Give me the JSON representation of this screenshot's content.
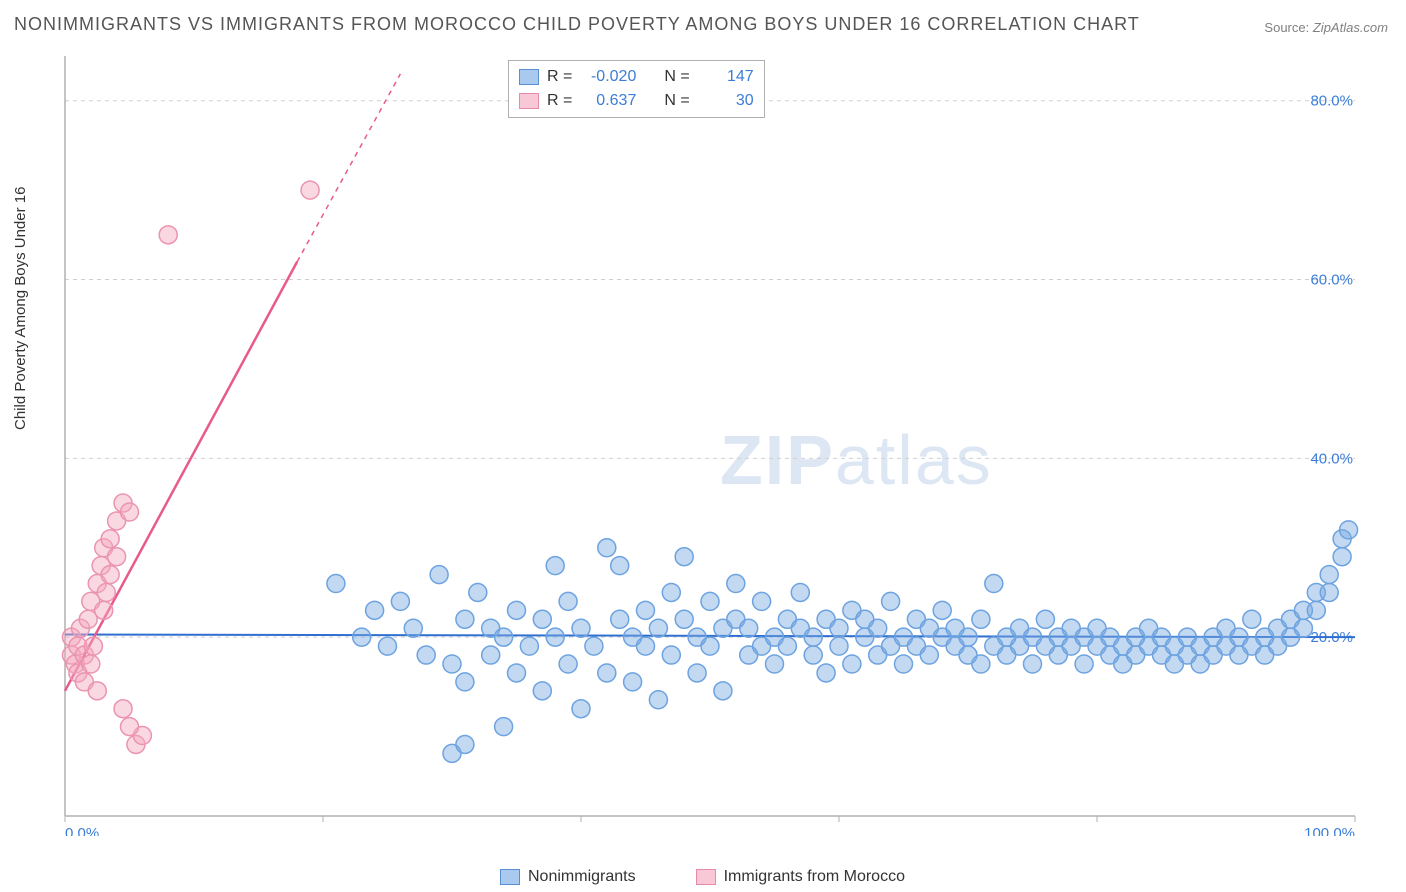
{
  "title": "NONIMMIGRANTS VS IMMIGRANTS FROM MOROCCO CHILD POVERTY AMONG BOYS UNDER 16 CORRELATION CHART",
  "source_label": "Source:",
  "source_value": "ZipAtlas.com",
  "ylabel": "Child Poverty Among Boys Under 16",
  "watermark_zip": "ZIP",
  "watermark_atlas": "atlas",
  "chart": {
    "type": "scatter",
    "xlim": [
      0,
      100
    ],
    "ylim": [
      0,
      85
    ],
    "x_ticks": [
      0,
      20,
      40,
      60,
      80,
      100
    ],
    "x_tick_labels": [
      "0.0%",
      "",
      "",
      "",
      "",
      "100.0%"
    ],
    "y_ticks": [
      20,
      40,
      60,
      80
    ],
    "y_tick_labels": [
      "20.0%",
      "40.0%",
      "60.0%",
      "80.0%"
    ],
    "grid_color": "#d0d0d0",
    "axis_color": "#b0b0b0",
    "background_color": "#ffffff",
    "tick_label_color": "#3b7dd8",
    "marker_radius": 9,
    "marker_stroke_width": 1.5,
    "series": [
      {
        "name": "Nonimmigrants",
        "color_fill": "rgba(123,171,227,0.45)",
        "color_stroke": "#6da3e0",
        "swatch_fill": "#a9c9ef",
        "swatch_stroke": "#5a8fd6",
        "R": "-0.020",
        "N": "147",
        "trend": {
          "x1": 0,
          "y1": 20.3,
          "x2": 100,
          "y2": 20.0,
          "color": "#2f6fd0",
          "width": 2
        },
        "points": [
          [
            21,
            26
          ],
          [
            23,
            20
          ],
          [
            24,
            23
          ],
          [
            25,
            19
          ],
          [
            26,
            24
          ],
          [
            27,
            21
          ],
          [
            28,
            18
          ],
          [
            29,
            27
          ],
          [
            30,
            17
          ],
          [
            30,
            7
          ],
          [
            31,
            22
          ],
          [
            31,
            15
          ],
          [
            32,
            25
          ],
          [
            33,
            18
          ],
          [
            33,
            21
          ],
          [
            34,
            20
          ],
          [
            34,
            10
          ],
          [
            35,
            16
          ],
          [
            35,
            23
          ],
          [
            36,
            19
          ],
          [
            37,
            22
          ],
          [
            37,
            14
          ],
          [
            38,
            20
          ],
          [
            38,
            28
          ],
          [
            39,
            17
          ],
          [
            39,
            24
          ],
          [
            40,
            21
          ],
          [
            40,
            12
          ],
          [
            41,
            19
          ],
          [
            42,
            30
          ],
          [
            42,
            16
          ],
          [
            43,
            22
          ],
          [
            43,
            28
          ],
          [
            44,
            20
          ],
          [
            44,
            15
          ],
          [
            45,
            23
          ],
          [
            45,
            19
          ],
          [
            46,
            21
          ],
          [
            46,
            13
          ],
          [
            47,
            25
          ],
          [
            47,
            18
          ],
          [
            48,
            22
          ],
          [
            48,
            29
          ],
          [
            49,
            20
          ],
          [
            49,
            16
          ],
          [
            50,
            24
          ],
          [
            50,
            19
          ],
          [
            51,
            21
          ],
          [
            51,
            14
          ],
          [
            52,
            22
          ],
          [
            52,
            26
          ],
          [
            53,
            18
          ],
          [
            53,
            21
          ],
          [
            54,
            19
          ],
          [
            54,
            24
          ],
          [
            55,
            20
          ],
          [
            55,
            17
          ],
          [
            56,
            22
          ],
          [
            56,
            19
          ],
          [
            57,
            21
          ],
          [
            57,
            25
          ],
          [
            58,
            18
          ],
          [
            58,
            20
          ],
          [
            59,
            22
          ],
          [
            59,
            16
          ],
          [
            60,
            21
          ],
          [
            60,
            19
          ],
          [
            61,
            23
          ],
          [
            61,
            17
          ],
          [
            62,
            20
          ],
          [
            62,
            22
          ],
          [
            63,
            18
          ],
          [
            63,
            21
          ],
          [
            64,
            19
          ],
          [
            64,
            24
          ],
          [
            65,
            20
          ],
          [
            65,
            17
          ],
          [
            66,
            22
          ],
          [
            66,
            19
          ],
          [
            67,
            21
          ],
          [
            67,
            18
          ],
          [
            68,
            20
          ],
          [
            68,
            23
          ],
          [
            69,
            19
          ],
          [
            69,
            21
          ],
          [
            70,
            18
          ],
          [
            70,
            20
          ],
          [
            71,
            22
          ],
          [
            71,
            17
          ],
          [
            72,
            26
          ],
          [
            72,
            19
          ],
          [
            73,
            20
          ],
          [
            73,
            18
          ],
          [
            74,
            21
          ],
          [
            74,
            19
          ],
          [
            75,
            20
          ],
          [
            75,
            17
          ],
          [
            76,
            22
          ],
          [
            76,
            19
          ],
          [
            77,
            20
          ],
          [
            77,
            18
          ],
          [
            78,
            21
          ],
          [
            78,
            19
          ],
          [
            79,
            20
          ],
          [
            79,
            17
          ],
          [
            80,
            19
          ],
          [
            80,
            21
          ],
          [
            81,
            18
          ],
          [
            81,
            20
          ],
          [
            82,
            19
          ],
          [
            82,
            17
          ],
          [
            83,
            20
          ],
          [
            83,
            18
          ],
          [
            84,
            19
          ],
          [
            84,
            21
          ],
          [
            85,
            18
          ],
          [
            85,
            20
          ],
          [
            86,
            17
          ],
          [
            86,
            19
          ],
          [
            87,
            18
          ],
          [
            87,
            20
          ],
          [
            88,
            19
          ],
          [
            88,
            17
          ],
          [
            89,
            18
          ],
          [
            89,
            20
          ],
          [
            90,
            19
          ],
          [
            90,
            21
          ],
          [
            91,
            18
          ],
          [
            91,
            20
          ],
          [
            92,
            19
          ],
          [
            92,
            22
          ],
          [
            93,
            20
          ],
          [
            93,
            18
          ],
          [
            94,
            21
          ],
          [
            94,
            19
          ],
          [
            95,
            22
          ],
          [
            95,
            20
          ],
          [
            96,
            23
          ],
          [
            96,
            21
          ],
          [
            97,
            25
          ],
          [
            97,
            23
          ],
          [
            98,
            27
          ],
          [
            98,
            25
          ],
          [
            99,
            29
          ],
          [
            99,
            31
          ],
          [
            99.5,
            32
          ],
          [
            31,
            8
          ]
        ]
      },
      {
        "name": "Immigrants from Morocco",
        "color_fill": "rgba(243,169,191,0.45)",
        "color_stroke": "#eb94b1",
        "swatch_fill": "#f8c8d7",
        "swatch_stroke": "#e88ba9",
        "R": "0.637",
        "N": "30",
        "trend": {
          "x1": 0,
          "y1": 14,
          "x2": 18,
          "y2": 62,
          "color": "#e85a8a",
          "width": 2.5,
          "dash_extend": {
            "x1": 18,
            "y1": 62,
            "x2": 26,
            "y2": 83
          }
        },
        "points": [
          [
            0.5,
            18
          ],
          [
            0.5,
            20
          ],
          [
            0.8,
            17
          ],
          [
            1,
            19
          ],
          [
            1,
            16
          ],
          [
            1.2,
            21
          ],
          [
            1.5,
            18
          ],
          [
            1.5,
            15
          ],
          [
            1.8,
            22
          ],
          [
            2,
            17
          ],
          [
            2,
            24
          ],
          [
            2.2,
            19
          ],
          [
            2.5,
            26
          ],
          [
            2.5,
            14
          ],
          [
            2.8,
            28
          ],
          [
            3,
            23
          ],
          [
            3,
            30
          ],
          [
            3.2,
            25
          ],
          [
            3.5,
            31
          ],
          [
            3.5,
            27
          ],
          [
            4,
            33
          ],
          [
            4,
            29
          ],
          [
            4.5,
            35
          ],
          [
            4.5,
            12
          ],
          [
            5,
            34
          ],
          [
            5.5,
            8
          ],
          [
            6,
            9
          ],
          [
            5,
            10
          ],
          [
            8,
            65
          ],
          [
            19,
            70
          ]
        ]
      }
    ]
  },
  "legend": {
    "series1_label": "Nonimmigrants",
    "series2_label": "Immigrants from Morocco"
  },
  "stats_labels": {
    "R": "R =",
    "N": "N ="
  }
}
